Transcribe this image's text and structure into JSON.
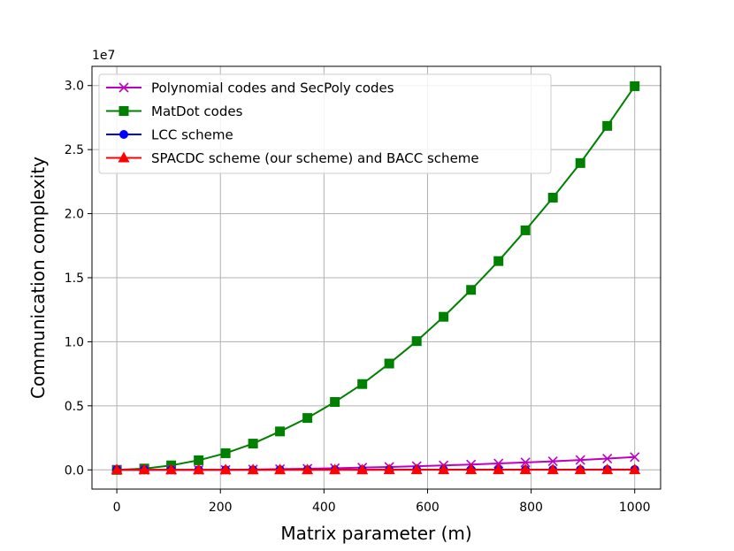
{
  "chart_data": {
    "type": "line",
    "xlabel": "Matrix parameter (m)",
    "ylabel": "Communication complexity",
    "y_scale_label": "1e7",
    "xlim": [
      -48,
      1050
    ],
    "ylim": [
      -0.15,
      3.15
    ],
    "y_scale_factor": 10000000,
    "grid": true,
    "legend_location": "top-left",
    "xticks": [
      0,
      200,
      400,
      600,
      800,
      1000
    ],
    "xtick_labels": [
      "0",
      "200",
      "400",
      "600",
      "800",
      "1000"
    ],
    "yticks": [
      0.0,
      0.5,
      1.0,
      1.5,
      2.0,
      2.5,
      3.0
    ],
    "ytick_labels": [
      "0.0",
      "0.5",
      "1.0",
      "1.5",
      "2.0",
      "2.5",
      "3.0"
    ],
    "x": [
      0,
      53,
      105,
      158,
      210,
      263,
      315,
      368,
      421,
      474,
      526,
      579,
      631,
      684,
      737,
      789,
      842,
      895,
      947,
      1000
    ],
    "series": [
      {
        "name": "Polynomial codes and SecPoly codes",
        "color": "#bf00bf",
        "marker": "x",
        "values": [
          0.0,
          0.0,
          0.0,
          0.0,
          0.0,
          0.003,
          0.006,
          0.009,
          0.013,
          0.018,
          0.023,
          0.029,
          0.035,
          0.042,
          0.05,
          0.058,
          0.067,
          0.077,
          0.088,
          0.1
        ]
      },
      {
        "name": "MatDot codes",
        "color": "#008000",
        "marker": "square",
        "values": [
          0.0,
          0.01,
          0.035,
          0.075,
          0.13,
          0.205,
          0.3,
          0.405,
          0.53,
          0.67,
          0.83,
          1.005,
          1.195,
          1.405,
          1.63,
          1.87,
          2.125,
          2.395,
          2.685,
          2.995
        ]
      },
      {
        "name": "LCC scheme",
        "color": "#0000ff",
        "marker": "circle",
        "values": [
          0.0,
          0.0,
          0.0,
          0.0,
          0.0,
          0.0,
          0.001,
          0.001,
          0.001,
          0.001,
          0.001,
          0.002,
          0.002,
          0.002,
          0.002,
          0.002,
          0.002,
          0.002,
          0.003,
          0.003
        ]
      },
      {
        "name": "SPACDC scheme (our scheme) and BACC scheme",
        "color": "#ff0000",
        "marker": "triangle",
        "values": [
          0.0,
          0.0,
          0.0,
          0.0,
          0.0,
          0.0,
          0.0,
          0.0,
          0.0,
          0.0,
          0.001,
          0.001,
          0.001,
          0.001,
          0.001,
          0.001,
          0.001,
          0.001,
          0.001,
          0.001
        ]
      }
    ]
  }
}
